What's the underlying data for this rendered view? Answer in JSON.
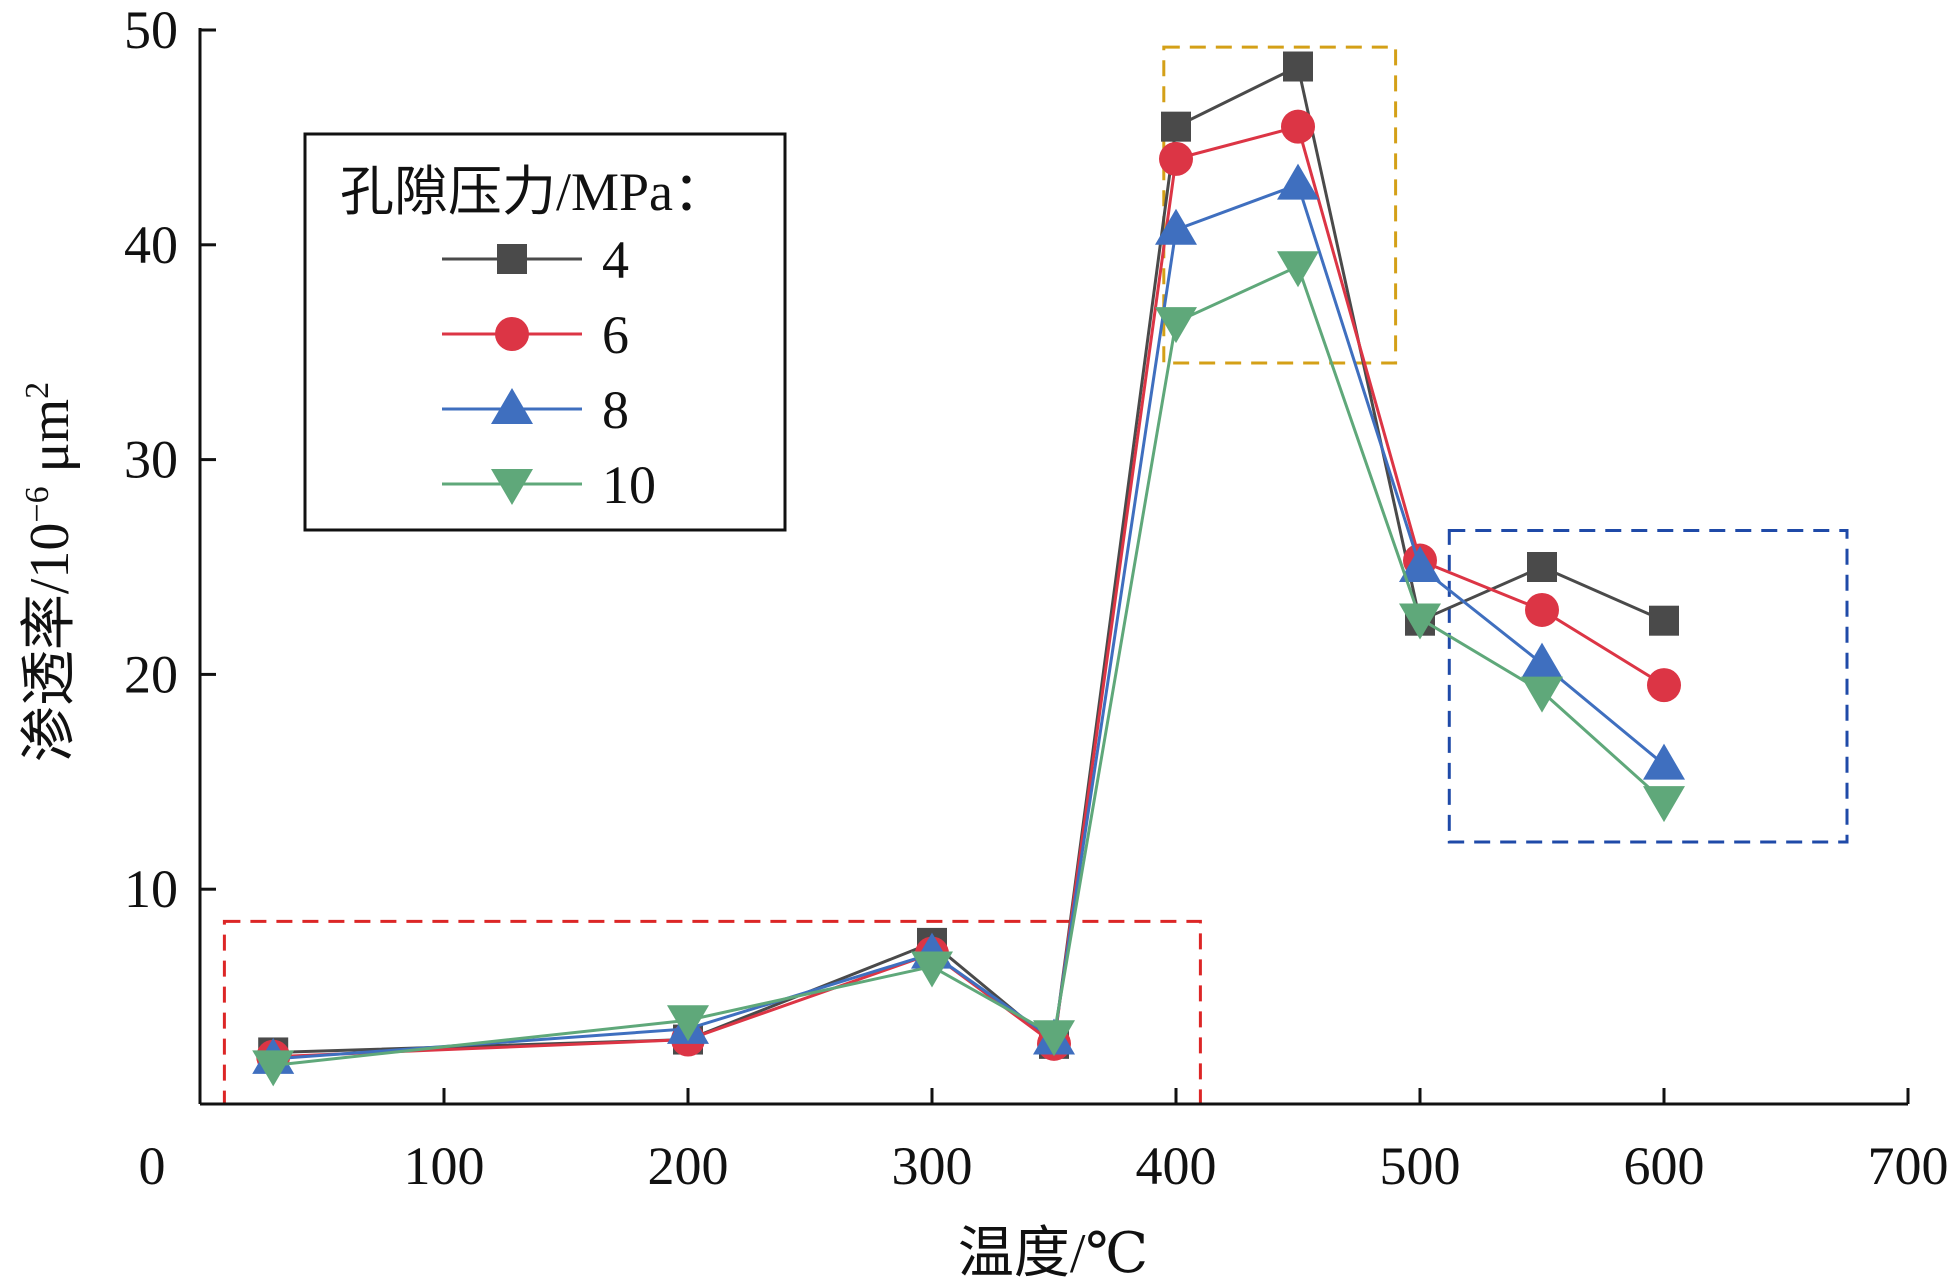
{
  "chart_data": {
    "type": "line",
    "xlabel": "温度/℃",
    "ylabel": "渗透率/10",
    "ylabel_exp": "−6",
    "ylabel_unit": " μm",
    "ylabel_unit_exp": "2",
    "xlim": [
      0,
      700
    ],
    "ylim": [
      0,
      50
    ],
    "xticks": [
      0,
      100,
      200,
      300,
      400,
      500,
      600,
      700
    ],
    "yticks": [
      10,
      20,
      30,
      40,
      50
    ],
    "x": [
      30,
      200,
      300,
      350,
      400,
      450,
      500,
      550,
      600
    ],
    "legend": {
      "title": "孔隙压力/MPa：",
      "location": "top-left"
    },
    "series": [
      {
        "name": "4",
        "marker": "square",
        "color": "#4a4a4a",
        "values": [
          2.4,
          3.0,
          7.5,
          2.8,
          45.5,
          48.3,
          22.5,
          25.0,
          22.5
        ]
      },
      {
        "name": "6",
        "marker": "circle",
        "color": "#dc3545",
        "values": [
          2.2,
          3.0,
          7.0,
          2.8,
          44.0,
          45.5,
          25.3,
          23.0,
          19.5
        ]
      },
      {
        "name": "8",
        "marker": "triangle-up",
        "color": "#3f6fbf",
        "values": [
          2.1,
          3.5,
          7.0,
          3.0,
          40.7,
          42.8,
          25.0,
          20.5,
          15.8
        ]
      },
      {
        "name": "10",
        "marker": "triangle-down",
        "color": "#5fa87a",
        "values": [
          1.8,
          3.9,
          6.4,
          3.2,
          36.4,
          39.0,
          22.6,
          19.2,
          14.1
        ]
      }
    ],
    "highlight_boxes": [
      {
        "name": "low-temperature-region",
        "color": "#dc2626",
        "x_range": [
          10,
          410
        ],
        "y_range": [
          0,
          8.5
        ]
      },
      {
        "name": "peak-region",
        "color": "#d4a017",
        "x_range": [
          395,
          490
        ],
        "y_range": [
          34.5,
          49.2
        ]
      },
      {
        "name": "high-temperature-region",
        "color": "#1f4aa8",
        "x_range": [
          512,
          675
        ],
        "y_range": [
          12.2,
          26.7
        ]
      }
    ]
  }
}
